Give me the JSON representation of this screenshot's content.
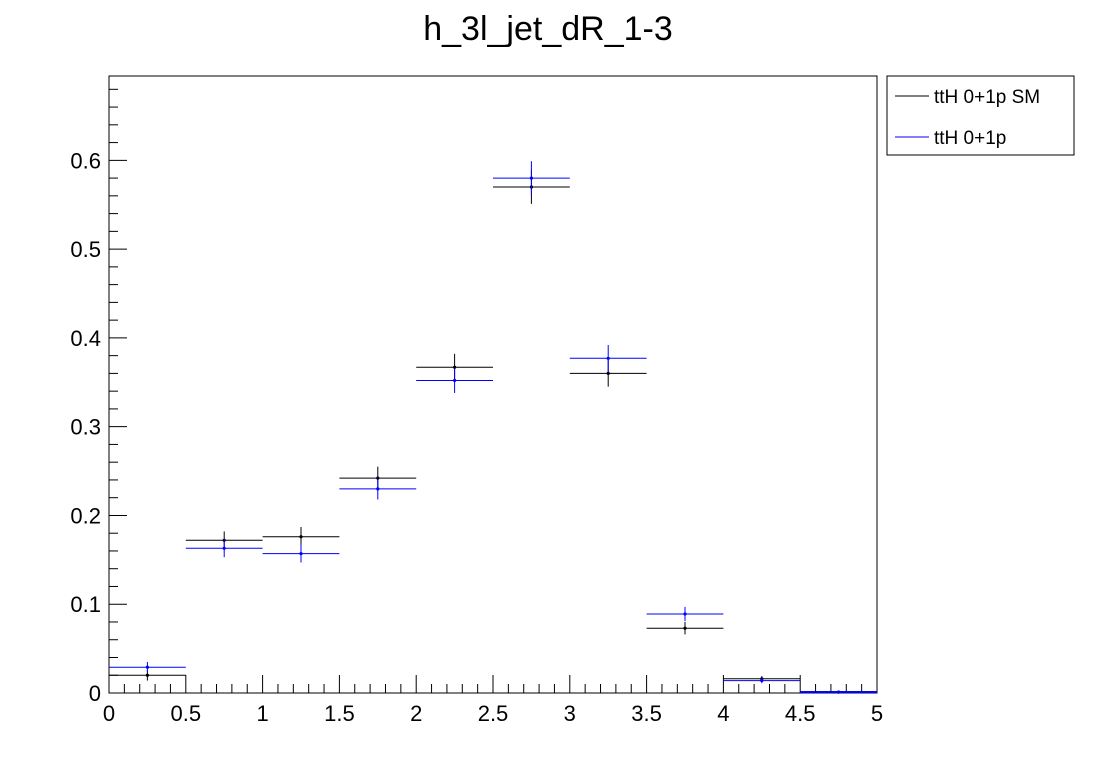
{
  "chart_data": {
    "type": "histogram",
    "title": "h_3l_jet_dR_1-3",
    "xlabel": "",
    "ylabel": "",
    "xlim": [
      0,
      5
    ],
    "ylim": [
      0,
      0.695
    ],
    "grid": false,
    "legend_position": "top-right, outside plot",
    "x_ticks": [
      "0",
      "0.5",
      "1",
      "1.5",
      "2",
      "2.5",
      "3",
      "3.5",
      "4",
      "4.5",
      "5"
    ],
    "y_ticks": [
      "0",
      "0.1",
      "0.2",
      "0.3",
      "0.4",
      "0.5",
      "0.6"
    ],
    "bin_edges": [
      0,
      0.5,
      1.0,
      1.5,
      2.0,
      2.5,
      3.0,
      3.5,
      4.0,
      4.5,
      5.0
    ],
    "series": [
      {
        "name": "ttH 0+1p SM",
        "color": "#000000",
        "values": [
          0.02,
          0.172,
          0.176,
          0.242,
          0.367,
          0.57,
          0.36,
          0.073,
          0.016,
          0.001
        ],
        "errors": [
          0.006,
          0.01,
          0.011,
          0.013,
          0.015,
          0.019,
          0.015,
          0.007,
          0.003,
          0.001
        ]
      },
      {
        "name": "ttH 0+1p",
        "color": "#0000ff",
        "values": [
          0.029,
          0.163,
          0.157,
          0.23,
          0.352,
          0.58,
          0.377,
          0.089,
          0.014,
          0.001
        ],
        "errors": [
          0.006,
          0.01,
          0.01,
          0.012,
          0.014,
          0.019,
          0.015,
          0.008,
          0.003,
          0.001
        ]
      }
    ]
  }
}
